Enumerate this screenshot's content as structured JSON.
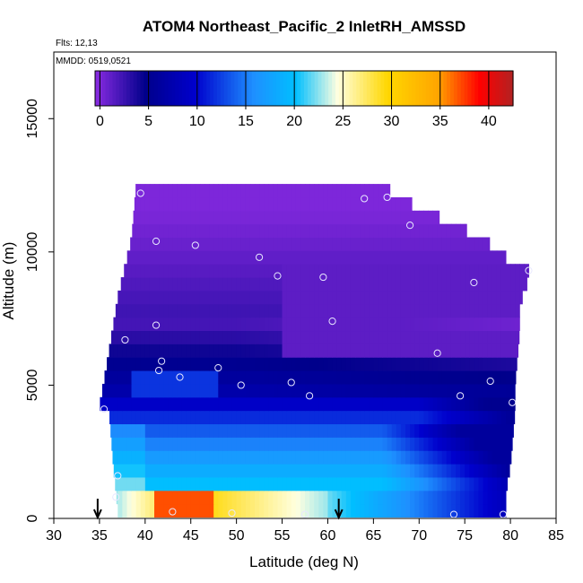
{
  "chart_data": {
    "type": "heatmap",
    "title": "ATOM4 Northeast_Pacific_2 InletRH_AMSSD",
    "flights_note": "Flts: 12,13",
    "dates_note": "MMDD: 0519,0521",
    "xlabel": "Latitude (deg N)",
    "ylabel": "Altitude (m)",
    "xlim": [
      30,
      85
    ],
    "ylim": [
      0,
      17500
    ],
    "x_ticks": [
      30,
      35,
      40,
      45,
      50,
      55,
      60,
      65,
      70,
      75,
      80,
      85
    ],
    "y_ticks": [
      0,
      5000,
      10000,
      15000
    ],
    "colorbar": {
      "range": [
        -0.5,
        42.5
      ],
      "ticks": [
        0,
        5,
        10,
        15,
        20,
        25,
        30,
        35,
        40
      ],
      "colors": [
        "#8a2be2",
        "#00008b",
        "#0000cd",
        "#1e90ff",
        "#00bfff",
        "#ffffe0",
        "#ffd700",
        "#ffa500",
        "#ff0000",
        "#b22222"
      ],
      "stops": [
        0,
        0.12,
        0.24,
        0.38,
        0.48,
        0.58,
        0.7,
        0.82,
        0.92,
        1.0
      ]
    },
    "region": {
      "bottom_alt": 300,
      "lat_step": 0.5,
      "alt_step": 500,
      "outline": [
        [
          35,
          4200
        ],
        [
          36,
          6200
        ],
        [
          37,
          8300
        ],
        [
          38.5,
          10500
        ],
        [
          39,
          12500
        ],
        [
          66,
          12500
        ],
        [
          68,
          12000
        ],
        [
          71,
          11500
        ],
        [
          74,
          11000
        ],
        [
          77,
          10500
        ],
        [
          79.5,
          9800
        ],
        [
          82,
          9500
        ],
        [
          82,
          9000
        ],
        [
          81,
          8000
        ],
        [
          81,
          7000
        ],
        [
          80.5,
          5000
        ],
        [
          80.5,
          4000
        ],
        [
          80,
          2000
        ],
        [
          79.5,
          1000
        ],
        [
          79.5,
          0
        ]
      ],
      "left_bottom": [
        [
          36,
          4200
        ],
        [
          36.5,
          2000
        ],
        [
          37,
          300
        ]
      ]
    },
    "arrows": {
      "latitudes": [
        34.8,
        61.2
      ]
    },
    "points": [
      [
        39.5,
        12200
      ],
      [
        64,
        12000
      ],
      [
        66.5,
        12050
      ],
      [
        41.2,
        10400
      ],
      [
        45.5,
        10250
      ],
      [
        69,
        11000
      ],
      [
        52.5,
        9800
      ],
      [
        54.5,
        9100
      ],
      [
        59.5,
        9050
      ],
      [
        82,
        9300
      ],
      [
        76,
        8850
      ],
      [
        60.5,
        7400
      ],
      [
        41.2,
        7250
      ],
      [
        37.8,
        6700
      ],
      [
        41.8,
        5900
      ],
      [
        72,
        6200
      ],
      [
        41.5,
        5550
      ],
      [
        48,
        5650
      ],
      [
        43.8,
        5300
      ],
      [
        50.5,
        5000
      ],
      [
        56,
        5100
      ],
      [
        58,
        4600
      ],
      [
        74.5,
        4600
      ],
      [
        77.8,
        5150
      ],
      [
        80.2,
        4350
      ],
      [
        35.5,
        4100
      ],
      [
        37,
        1600
      ],
      [
        36.8,
        800
      ],
      [
        43,
        250
      ],
      [
        49.5,
        200
      ],
      [
        57.5,
        150
      ],
      [
        73.8,
        150
      ],
      [
        79.2,
        150
      ]
    ]
  }
}
